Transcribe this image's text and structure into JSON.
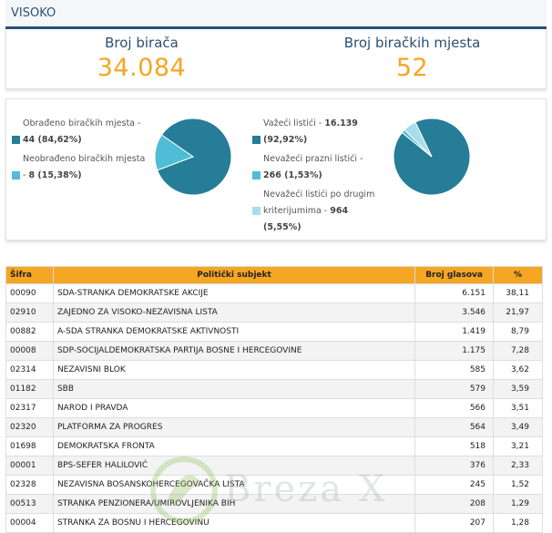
{
  "header": {
    "title": "VISOKO"
  },
  "stats": {
    "voters_label": "Broj birača",
    "voters_value": "34.084",
    "stations_label": "Broj biračkih mjesta",
    "stations_value": "52"
  },
  "pie_left": {
    "slices": [
      {
        "text": "Obrađeno biračkih mjesta - ",
        "bold": "44 (84,62%)",
        "color": "#257d97",
        "value": 84.62
      },
      {
        "text": "Neobrađeno biračkih mjesta - ",
        "bold": "8 (15,38%)",
        "color": "#4fbdd6",
        "value": 15.38
      }
    ]
  },
  "pie_right": {
    "slices": [
      {
        "text": "Važeći listići - ",
        "bold": "16.139 (92,92%)",
        "color": "#257d97",
        "value": 92.92
      },
      {
        "text": "Nevažeći prazni listići - ",
        "bold": "266 (1,53%)",
        "color": "#4fbdd6",
        "value": 1.53
      },
      {
        "text": "Nevažeći listići po drugim kriterijumima - ",
        "bold": "964 (5,55%)",
        "color": "#a9dde9",
        "value": 5.55
      }
    ]
  },
  "table": {
    "headers": {
      "code": "Šifra",
      "subject": "Politički subjekt",
      "votes": "Broj glasova",
      "percent": "%"
    },
    "rows": [
      {
        "code": "00090",
        "subject": "SDA-STRANKA DEMOKRATSKE AKCIJE",
        "votes": "6.151",
        "percent": "38,11"
      },
      {
        "code": "02910",
        "subject": "ZAJEDNO ZA VISOKO-NEZAVISNA LISTA",
        "votes": "3.546",
        "percent": "21,97"
      },
      {
        "code": "00882",
        "subject": "A-SDA STRANKA DEMOKRATSKE AKTIVNOSTI",
        "votes": "1.419",
        "percent": "8,79"
      },
      {
        "code": "00008",
        "subject": "SDP-SOCIJALDEMOKRATSKA PARTIJA BOSNE I HERCEGOVINE",
        "votes": "1.175",
        "percent": "7,28"
      },
      {
        "code": "02314",
        "subject": "NEZAVISNI BLOK",
        "votes": "585",
        "percent": "3,62"
      },
      {
        "code": "01182",
        "subject": "SBB",
        "votes": "579",
        "percent": "3,59"
      },
      {
        "code": "02317",
        "subject": "NAROD I PRAVDA",
        "votes": "566",
        "percent": "3,51"
      },
      {
        "code": "02320",
        "subject": "PLATFORMA ZA PROGRES",
        "votes": "564",
        "percent": "3,49"
      },
      {
        "code": "01698",
        "subject": "DEMOKRATSKA FRONTA",
        "votes": "518",
        "percent": "3,21"
      },
      {
        "code": "00001",
        "subject": "BPS-SEFER HALILOVIĆ",
        "votes": "376",
        "percent": "2,33"
      },
      {
        "code": "02328",
        "subject": "NEZAVISNA BOSANSKOHERCEGOVAČKA LISTA",
        "votes": "245",
        "percent": "1,52"
      },
      {
        "code": "00513",
        "subject": "STRANKA PENZIONERA/UMIROVLJENIKA BIH",
        "votes": "208",
        "percent": "1,29"
      },
      {
        "code": "00004",
        "subject": "STRANKA ZA BOSNU I HERCEGOVINU",
        "votes": "207",
        "percent": "1,28"
      }
    ]
  },
  "watermark": {
    "text": "Breza X"
  }
}
